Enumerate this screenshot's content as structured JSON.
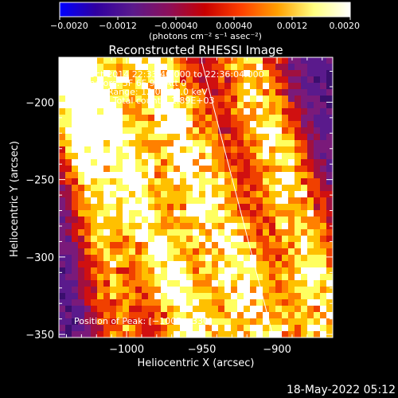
{
  "chart_data": {
    "type": "heatmap",
    "title": "Reconstructed RHESSI Image",
    "xlabel": "Heliocentric X (arcsec)",
    "ylabel": "Heliocentric Y (arcsec)",
    "xlim": [
      -1045,
      -863
    ],
    "ylim": [
      -352,
      -171
    ],
    "x_ticks": [
      {
        "value": -1000,
        "label": "−1000"
      },
      {
        "value": -950,
        "label": "−950"
      },
      {
        "value": -900,
        "label": "−900"
      }
    ],
    "y_ticks": [
      {
        "value": -200,
        "label": "−200"
      },
      {
        "value": -250,
        "label": "−250"
      },
      {
        "value": -300,
        "label": "−300"
      },
      {
        "value": -350,
        "label": "−350"
      }
    ],
    "colorbar": {
      "min": -0.002,
      "max": 0.002,
      "tick_labels": [
        "−0.0020",
        "−0.0012",
        "−0.00040",
        "0.00040",
        "0.0012",
        "0.0020"
      ],
      "unit_label": "(photons cm⁻² s⁻¹ asec⁻²)",
      "colors": [
        "#0000ff",
        "#3000a0",
        "#5a1a8c",
        "#8c0f5a",
        "#c80000",
        "#ff4000",
        "#ffa000",
        "#ffff80",
        "#ffffff"
      ]
    },
    "info_lines": [
      "16-Oct-2014 22:33:40.000 to 22:36:04.000",
      "Detectors: 3F 6F 9F, Att 0",
      "Energy Range: 12.0 - 25.0 keV",
      "Clean     Total counts: 1.89E+03"
    ],
    "peak_label": "Position of Peak: [−1005,−330]",
    "peak_position": [
      -1005,
      -330
    ],
    "limb_line": {
      "from": [
        -950,
        -174
      ],
      "to": [
        -903,
        -350
      ]
    },
    "grid": false
  },
  "footer": {
    "timestamp": "18-May-2022 05:12"
  }
}
